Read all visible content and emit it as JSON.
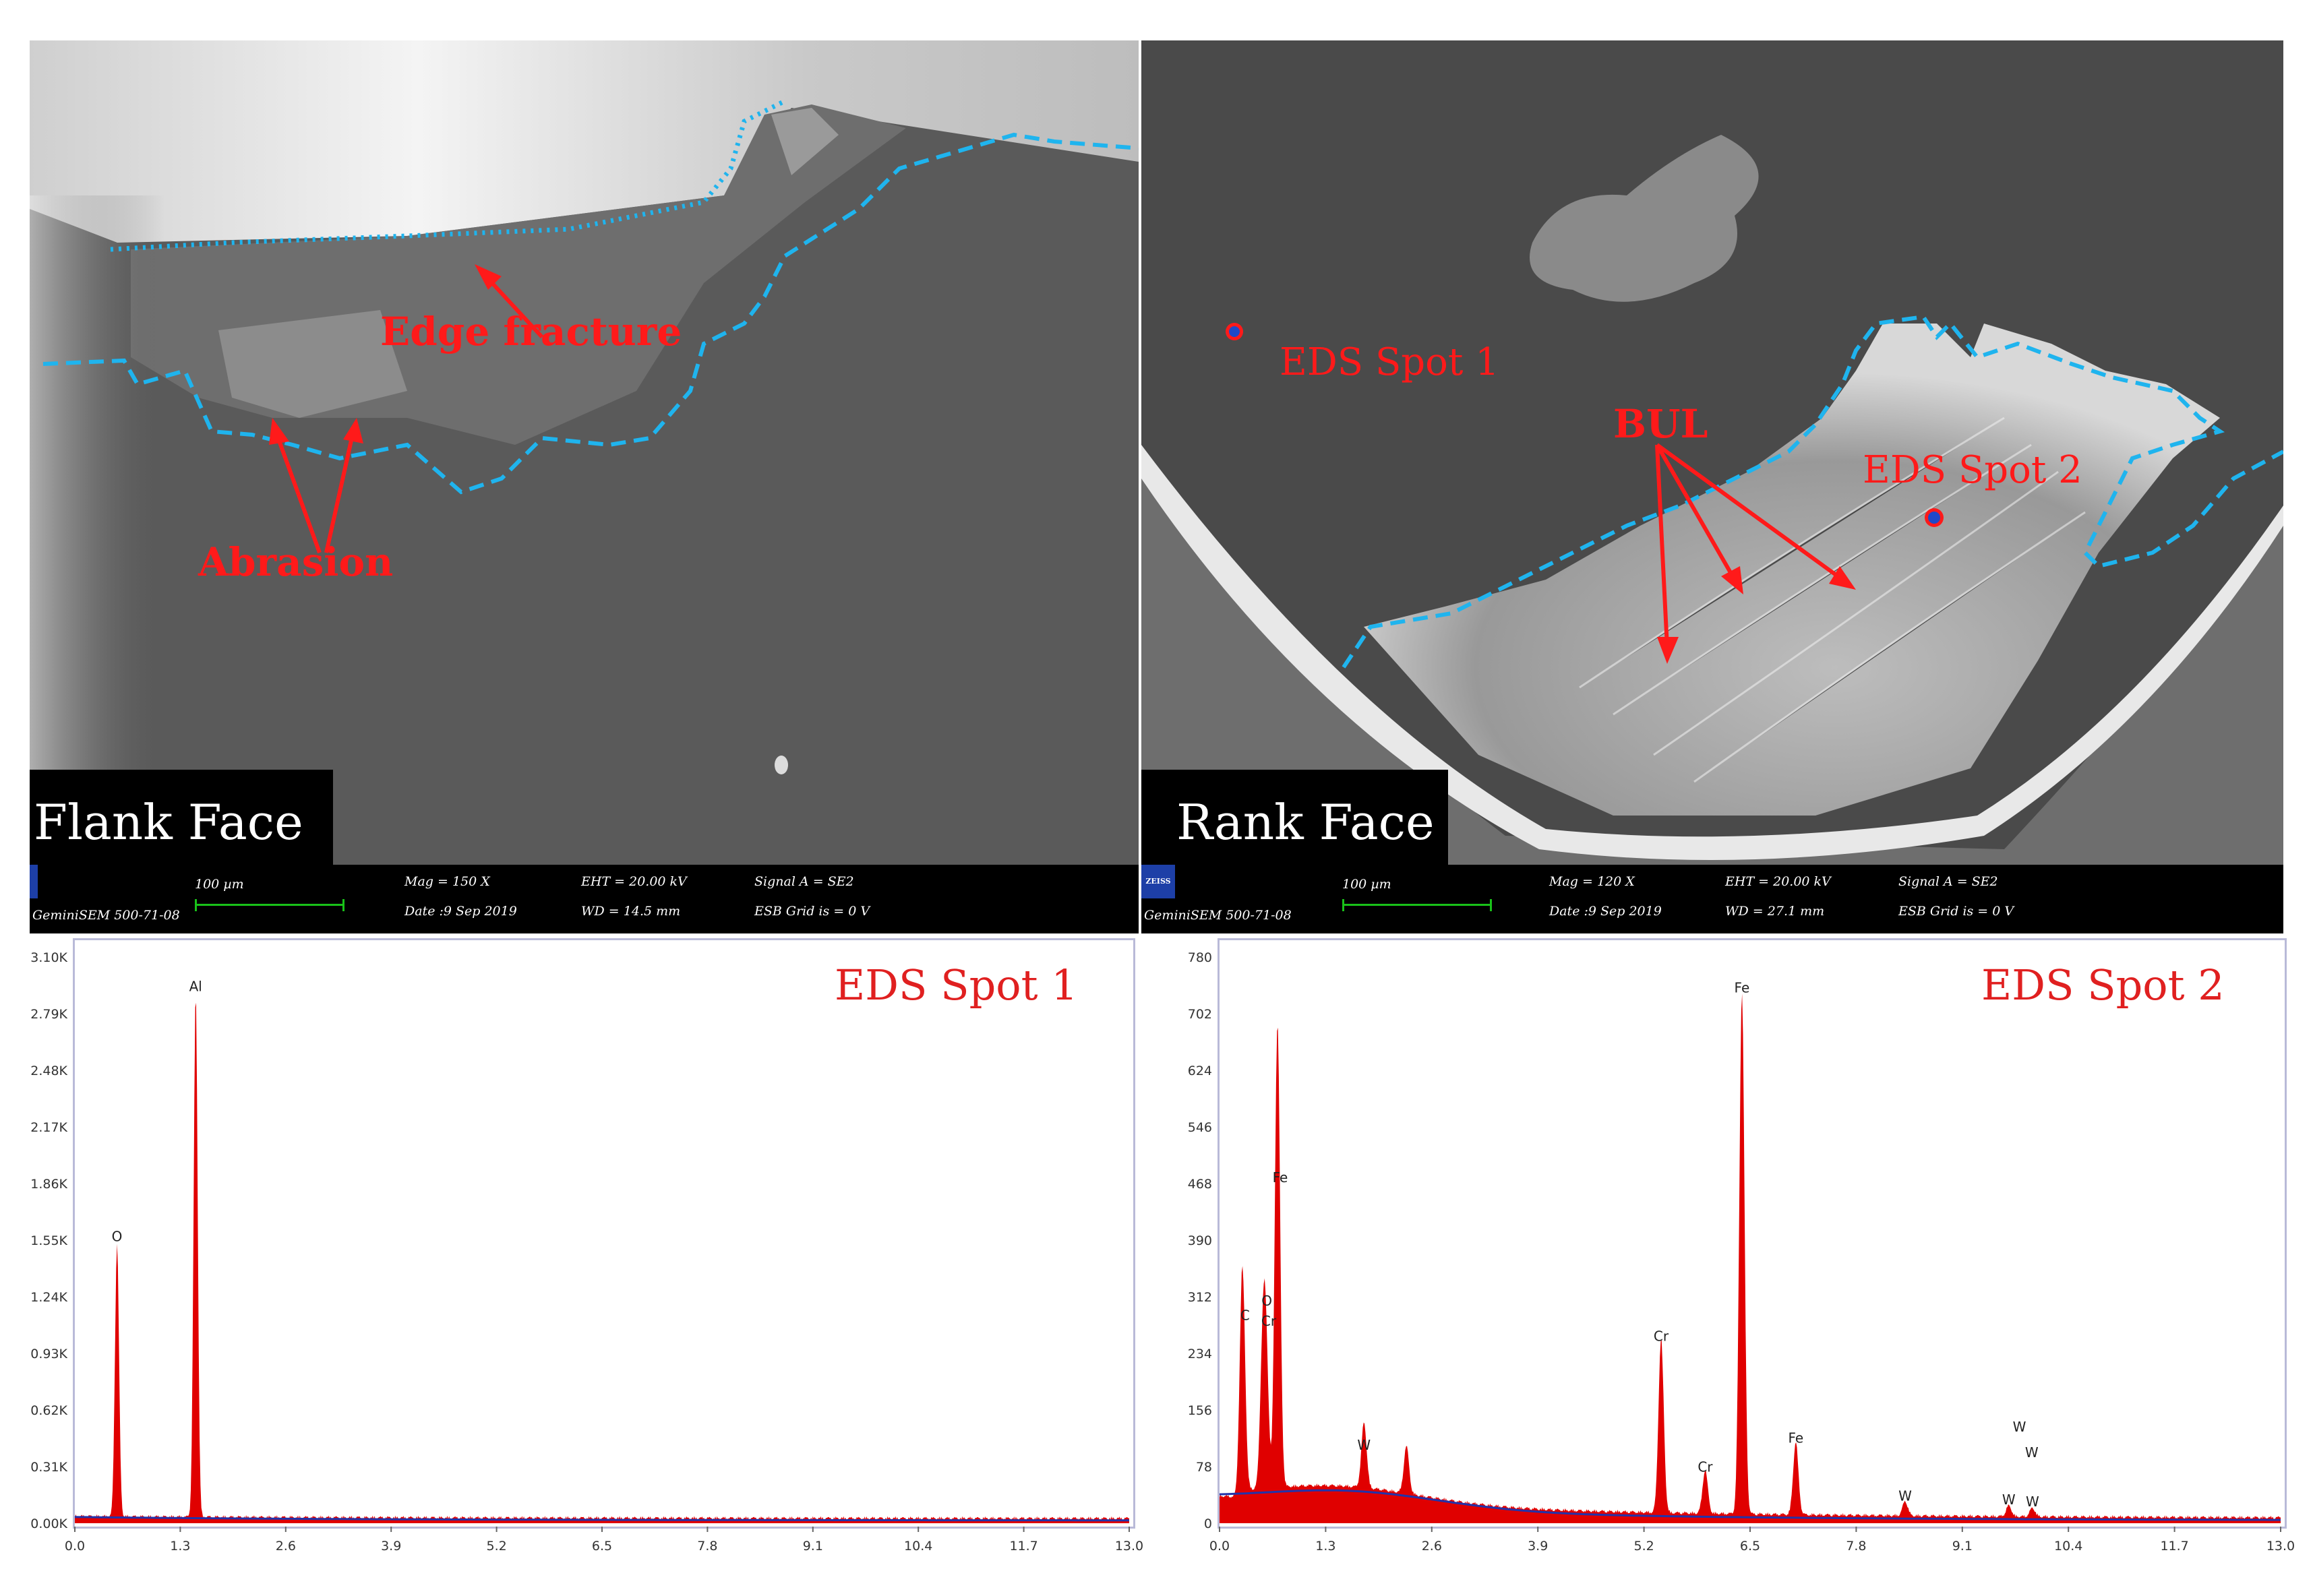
{
  "sem_left": {
    "face_label": "Flank Face",
    "annotations": {
      "edge": "Edge fracture",
      "abrasion": "Abrasion"
    },
    "infobar": {
      "brand": "",
      "model": "GeminiSEM 500-71-08",
      "scale": "100 µm",
      "mag": "Mag =   150 X",
      "date": "Date :9 Sep 2019",
      "eht": "EHT = 20.00 kV",
      "wd": "WD = 14.5 mm",
      "signal": "Signal A = SE2",
      "esb": "ESB Grid is =     0 V"
    }
  },
  "sem_right": {
    "face_label": "Rank Face",
    "annotations": {
      "spot1": "EDS Spot 1",
      "spot2": "EDS Spot 2",
      "bul": "BUL"
    },
    "infobar": {
      "brand": "ZEISS",
      "model": "GeminiSEM 500-71-08",
      "scale": "100 µm",
      "mag": "Mag =   120 X",
      "date": "Date :9 Sep 2019",
      "eht": "EHT = 20.00 kV",
      "wd": "WD = 27.1 mm",
      "signal": "Signal A = SE2",
      "esb": "ESB Grid is =     0 V"
    }
  },
  "chart_data": [
    {
      "type": "area",
      "title": "EDS Spot 1",
      "xlim": [
        0,
        13.0
      ],
      "ylim": [
        0,
        3100
      ],
      "x_ticks": [
        "0.0",
        "1.3",
        "2.6",
        "3.9",
        "5.2",
        "6.5",
        "7.8",
        "9.1",
        "10.4",
        "11.7",
        "13.0"
      ],
      "y_ticks": [
        "0.00K",
        "0.31K",
        "0.62K",
        "0.93K",
        "1.24K",
        "1.55K",
        "1.86K",
        "2.17K",
        "2.48K",
        "2.79K",
        "3.10K"
      ],
      "peaks": [
        {
          "label": "O",
          "x": 0.52,
          "y": 1500
        },
        {
          "label": "Al",
          "x": 1.49,
          "y": 2870
        }
      ],
      "series_colors": {
        "fill": "#e00000",
        "background": "#2233aa"
      }
    },
    {
      "type": "area",
      "title": "EDS Spot 2",
      "xlim": [
        0,
        13.0
      ],
      "ylim": [
        0,
        780
      ],
      "x_ticks": [
        "0.0",
        "1.3",
        "2.6",
        "3.9",
        "5.2",
        "6.5",
        "7.8",
        "9.1",
        "10.4",
        "11.7",
        "13.0"
      ],
      "y_ticks": [
        "0",
        "78",
        "156",
        "234",
        "312",
        "390",
        "468",
        "546",
        "624",
        "702",
        "780"
      ],
      "peaks": [
        {
          "label": "C",
          "x": 0.28,
          "y": 320
        },
        {
          "label": "O",
          "x": 0.53,
          "y": 180
        },
        {
          "label": "Cr",
          "x": 0.57,
          "y": 170
        },
        {
          "label": "Fe",
          "x": 0.71,
          "y": 640
        },
        {
          "label": "W",
          "x": 1.77,
          "y": 90
        },
        {
          "label": "",
          "x": 2.29,
          "y": 65
        },
        {
          "label": "Cr",
          "x": 5.41,
          "y": 240
        },
        {
          "label": "Cr",
          "x": 5.95,
          "y": 60
        },
        {
          "label": "Fe",
          "x": 6.4,
          "y": 720
        },
        {
          "label": "Fe",
          "x": 7.06,
          "y": 100
        },
        {
          "label": "W",
          "x": 8.4,
          "y": 20
        },
        {
          "label": "W",
          "x": 9.67,
          "y": 15
        },
        {
          "label": "W",
          "x": 9.96,
          "y": 12
        }
      ],
      "extra_labels": [
        {
          "label": "W",
          "x": 9.8,
          "y": 115
        },
        {
          "label": "W",
          "x": 9.95,
          "y": 80
        }
      ],
      "series_colors": {
        "fill": "#e00000",
        "background": "#2233aa"
      }
    }
  ]
}
